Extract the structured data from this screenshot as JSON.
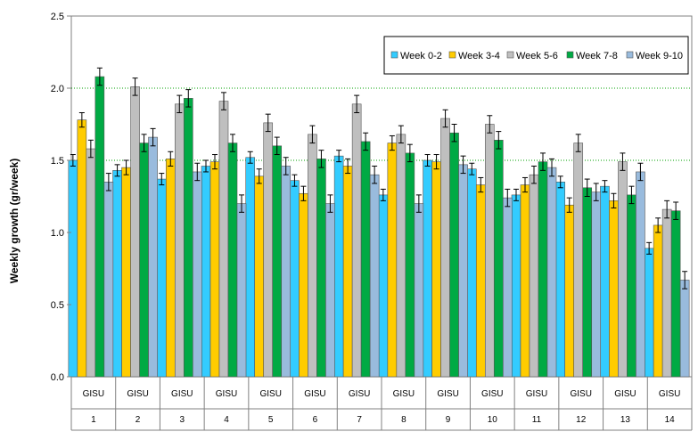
{
  "chart_data": {
    "type": "bar",
    "title": "",
    "xlabel": "",
    "ylabel": "Weekly growth (gr/week)",
    "ylim": [
      0,
      2.5
    ],
    "yticks": [
      "0.0",
      "0.5",
      "1.0",
      "1.5",
      "2.0",
      "2.5"
    ],
    "grid": "dotted green horizontal lines at 1.5 and 2.0",
    "legend_position": "top-right",
    "categories_top": [
      "GISU",
      "GISU",
      "GISU",
      "GISU",
      "GISU",
      "GISU",
      "GISU",
      "GISU",
      "GISU",
      "GISU",
      "GISU",
      "GISU",
      "GISU",
      "GISU"
    ],
    "categories": [
      "1",
      "2",
      "3",
      "4",
      "5",
      "6",
      "7",
      "8",
      "9",
      "10",
      "11",
      "12",
      "13",
      "14"
    ],
    "series": [
      {
        "name": "Week 0-2",
        "color": "#33CCFF",
        "values": [
          1.5,
          1.43,
          1.37,
          1.46,
          1.52,
          1.36,
          1.53,
          1.26,
          1.5,
          1.44,
          1.26,
          1.35,
          1.32,
          0.89
        ],
        "errors": [
          0.04,
          0.04,
          0.04,
          0.04,
          0.04,
          0.04,
          0.04,
          0.04,
          0.04,
          0.04,
          0.04,
          0.04,
          0.04,
          0.04
        ]
      },
      {
        "name": "Week 3-4",
        "color": "#FFCC00",
        "values": [
          1.78,
          1.45,
          1.51,
          1.49,
          1.39,
          1.27,
          1.46,
          1.62,
          1.49,
          1.33,
          1.33,
          1.19,
          1.22,
          1.05
        ],
        "errors": [
          0.05,
          0.05,
          0.05,
          0.05,
          0.05,
          0.05,
          0.05,
          0.05,
          0.05,
          0.05,
          0.05,
          0.05,
          0.05,
          0.05
        ]
      },
      {
        "name": "Week 5-6",
        "color": "#BFBFBF",
        "values": [
          1.58,
          2.01,
          1.89,
          1.91,
          1.76,
          1.68,
          1.89,
          1.68,
          1.79,
          1.75,
          1.4,
          1.62,
          1.49,
          1.16
        ],
        "errors": [
          0.06,
          0.06,
          0.06,
          0.06,
          0.06,
          0.06,
          0.06,
          0.06,
          0.06,
          0.06,
          0.06,
          0.06,
          0.06,
          0.06
        ]
      },
      {
        "name": "Week 7-8",
        "color": "#00AA44",
        "values": [
          2.08,
          1.62,
          1.93,
          1.62,
          1.6,
          1.51,
          1.63,
          1.55,
          1.69,
          1.64,
          1.49,
          1.31,
          1.26,
          1.15
        ],
        "errors": [
          0.06,
          0.06,
          0.06,
          0.06,
          0.06,
          0.06,
          0.06,
          0.06,
          0.06,
          0.06,
          0.06,
          0.06,
          0.06,
          0.06
        ]
      },
      {
        "name": "Week 9-10",
        "color": "#99BBDD",
        "values": [
          1.35,
          1.66,
          1.42,
          1.2,
          1.46,
          1.2,
          1.4,
          1.2,
          1.47,
          1.24,
          1.45,
          1.28,
          1.42,
          0.67
        ],
        "errors": [
          0.06,
          0.06,
          0.06,
          0.06,
          0.06,
          0.06,
          0.06,
          0.06,
          0.06,
          0.06,
          0.06,
          0.06,
          0.06,
          0.06
        ]
      }
    ]
  }
}
